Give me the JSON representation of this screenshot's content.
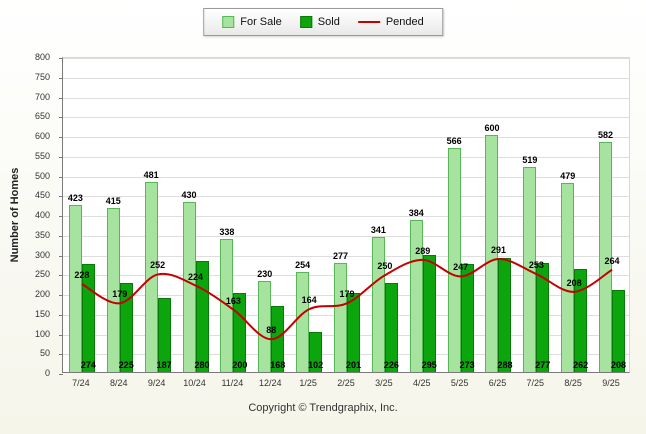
{
  "chart": {
    "ylabel": "Number of Homes",
    "footer": "Copyright © Trendgraphix, Inc.",
    "legend": [
      {
        "label": "For Sale",
        "type": "box",
        "color": "#a6e39e",
        "border": "#57b757"
      },
      {
        "label": "Sold",
        "type": "box",
        "color": "#0da50d",
        "border": "#087a08"
      },
      {
        "label": "Pended",
        "type": "line",
        "color": "#c40000"
      }
    ]
  },
  "chart_data": {
    "type": "bar",
    "title": "",
    "xlabel": "",
    "ylabel": "Number of Homes",
    "ylim": [
      0,
      800
    ],
    "ytick_step": 50,
    "grid": true,
    "legend_position": "top",
    "categories": [
      "7/24",
      "8/24",
      "9/24",
      "10/24",
      "11/24",
      "12/24",
      "1/25",
      "2/25",
      "3/25",
      "4/25",
      "5/25",
      "6/25",
      "7/25",
      "8/25",
      "9/25"
    ],
    "series": [
      {
        "name": "For Sale",
        "render": "bar",
        "color": "#a6e39e",
        "border": "#57b757",
        "values": [
          423,
          415,
          481,
          430,
          338,
          230,
          254,
          277,
          341,
          384,
          566,
          600,
          519,
          479,
          582
        ]
      },
      {
        "name": "Sold",
        "render": "bar",
        "color": "#0da50d",
        "border": "#087a08",
        "values": [
          274,
          225,
          187,
          280,
          200,
          168,
          102,
          201,
          226,
          295,
          273,
          288,
          277,
          262,
          208
        ]
      },
      {
        "name": "Pended",
        "render": "line",
        "color": "#c40000",
        "values": [
          228,
          179,
          252,
          224,
          163,
          88,
          164,
          179,
          250,
          289,
          247,
          291,
          253,
          208,
          264
        ]
      }
    ]
  }
}
